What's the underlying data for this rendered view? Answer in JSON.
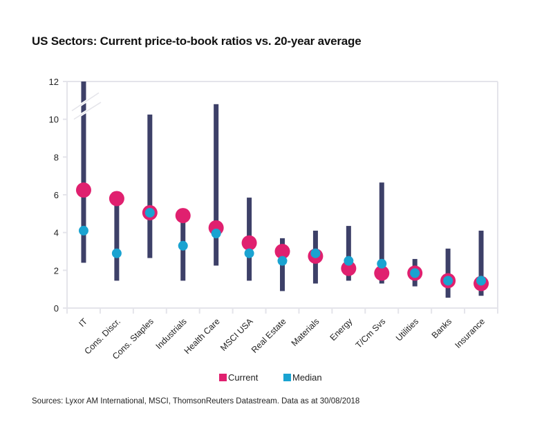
{
  "title": "US Sectors: Current price-to-book ratios vs. 20-year average",
  "source": "Sources: Lyxor AM International, MSCI, ThomsonReuters Datastream. Data as at 30/08/2018",
  "colors": {
    "current": "#E0206F",
    "median": "#1AA3D1",
    "range": "#3D4068",
    "grid": "#E4E4EA"
  },
  "chart_data": {
    "type": "scatter",
    "subtype": "range-dot (min-max bar with current and median markers)",
    "title": "US Sectors: Current price-to-book ratios vs. 20-year average",
    "xlabel": "",
    "ylabel": "",
    "ylim": [
      0,
      12
    ],
    "yticks": [
      0,
      2,
      4,
      6,
      8,
      10,
      12
    ],
    "axis_break": "y-axis break marker between 10 and 12 on IT bar (IT max exceeds 12)",
    "grid": false,
    "legend_position": "bottom-center",
    "categories": [
      "IT",
      "Cons. Discr.",
      "Cons. Staples",
      "Industrials",
      "Health Care",
      "MSCI USA",
      "Real Estate",
      "Materials",
      "Energy",
      "T/Cm Svs",
      "Utilities",
      "Banks",
      "Insurance"
    ],
    "series": [
      {
        "name": "Current",
        "values": [
          6.25,
          5.8,
          5.05,
          4.9,
          4.25,
          3.45,
          3.0,
          2.75,
          2.1,
          1.85,
          1.85,
          1.45,
          1.3
        ]
      },
      {
        "name": "Median",
        "values": [
          4.1,
          2.9,
          5.05,
          3.3,
          3.95,
          2.9,
          2.5,
          2.9,
          2.5,
          2.35,
          1.85,
          1.45,
          1.45
        ]
      }
    ],
    "range_min": [
      2.4,
      1.45,
      2.65,
      1.45,
      2.25,
      1.45,
      0.9,
      1.3,
      1.45,
      1.3,
      1.15,
      0.55,
      0.65
    ],
    "range_max": [
      12,
      5.8,
      10.25,
      4.9,
      10.8,
      5.85,
      3.7,
      4.1,
      4.35,
      6.65,
      2.6,
      3.15,
      4.1
    ],
    "legend": [
      "Current",
      "Median"
    ]
  }
}
